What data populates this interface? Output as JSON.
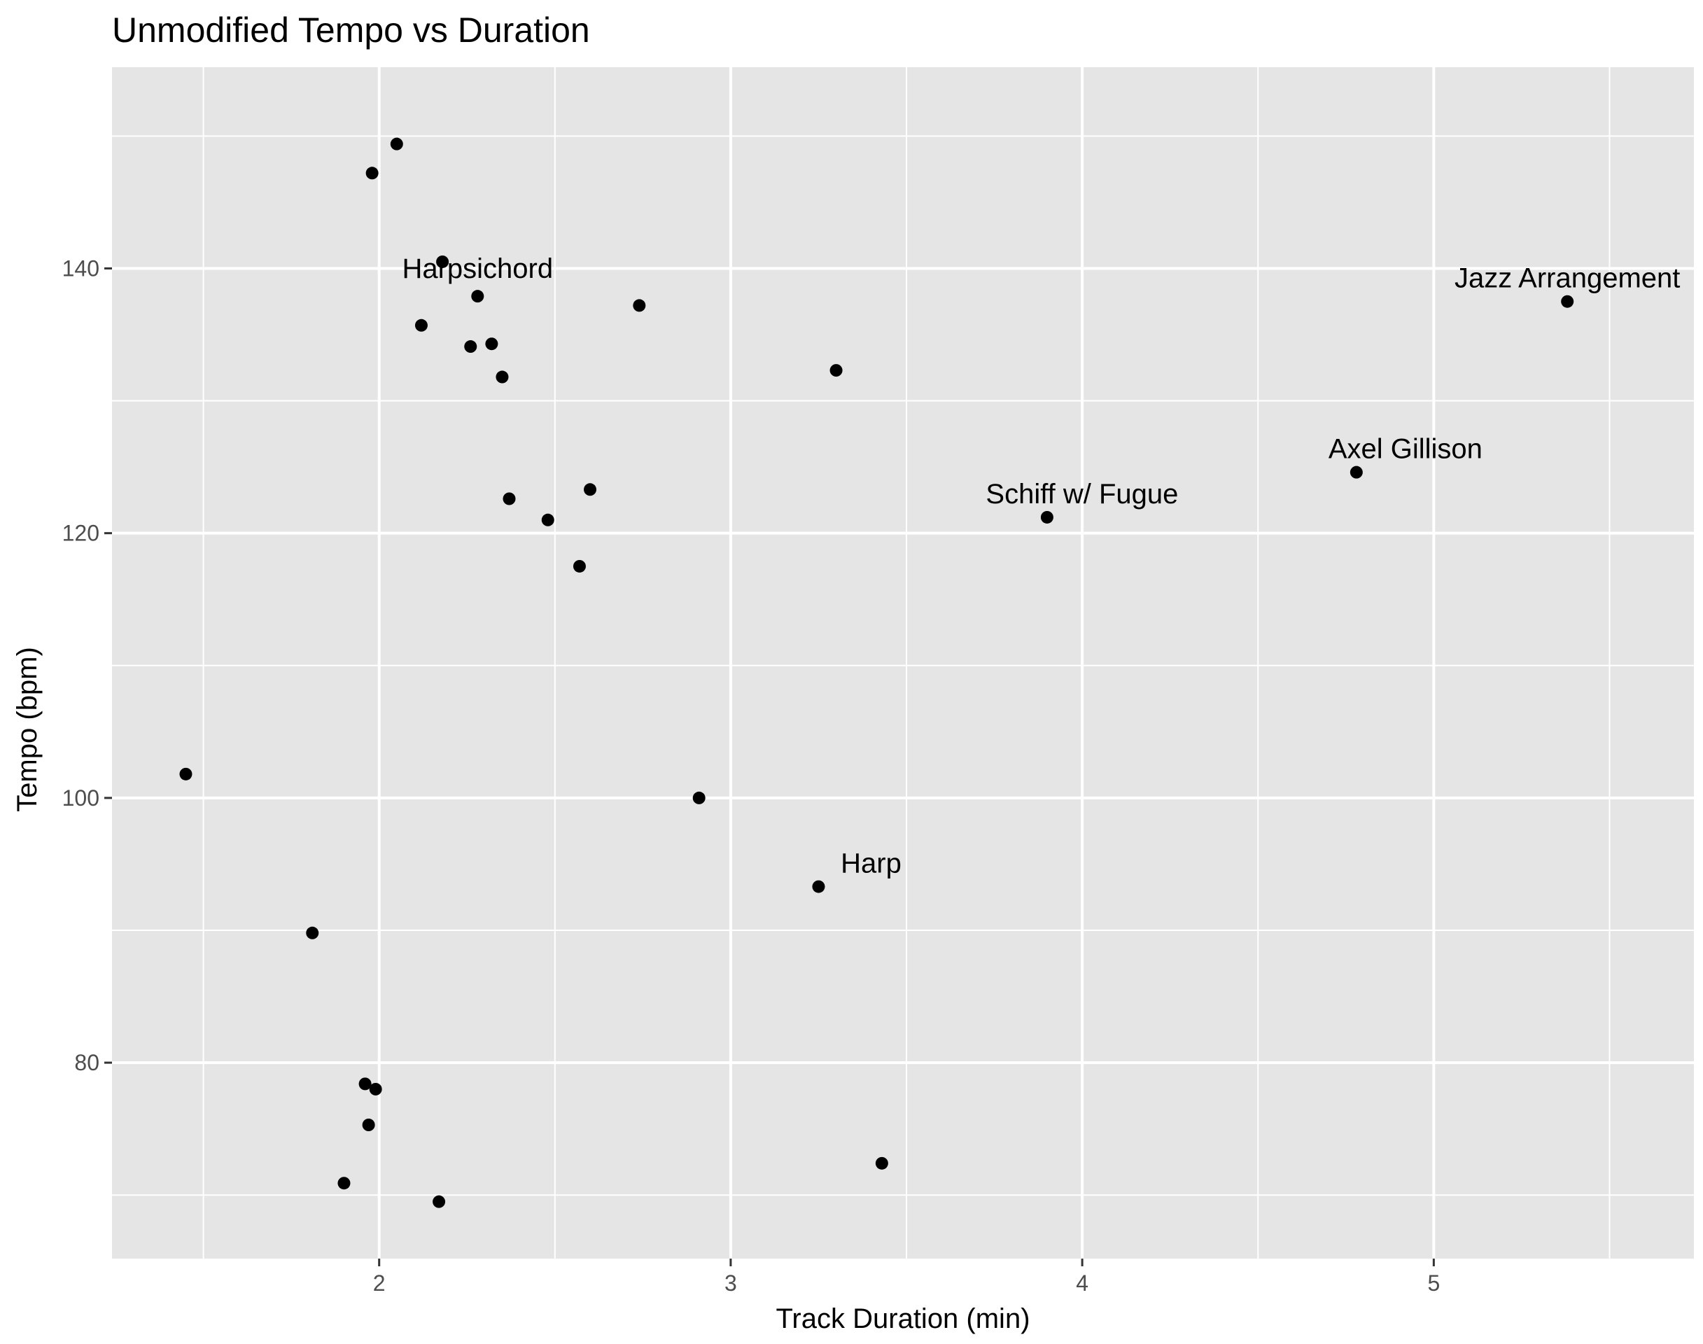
{
  "chart_data": {
    "type": "scatter",
    "title": "Unmodified Tempo vs Duration",
    "xlabel": "Track Duration (min)",
    "ylabel": "Tempo (bpm)",
    "xlim": [
      1.24,
      5.74
    ],
    "ylim": [
      65.2,
      155.2
    ],
    "x_ticks": [
      2,
      3,
      4,
      5
    ],
    "y_ticks": [
      80,
      100,
      120,
      140
    ],
    "x_minor": [
      1.5,
      2.5,
      3.5,
      4.5,
      5.5
    ],
    "y_minor": [
      70,
      90,
      110,
      130,
      150
    ],
    "grid": true,
    "background": "#e5e5e5",
    "gridline_color": "#ffffff",
    "point_color": "#000000",
    "points": [
      {
        "x": 1.45,
        "y": 101.8,
        "label": ""
      },
      {
        "x": 1.81,
        "y": 89.8,
        "label": ""
      },
      {
        "x": 1.9,
        "y": 70.9,
        "label": ""
      },
      {
        "x": 1.96,
        "y": 78.4,
        "label": ""
      },
      {
        "x": 1.97,
        "y": 75.3,
        "label": ""
      },
      {
        "x": 1.98,
        "y": 147.2,
        "label": ""
      },
      {
        "x": 1.99,
        "y": 78.0,
        "label": ""
      },
      {
        "x": 2.05,
        "y": 149.4,
        "label": ""
      },
      {
        "x": 2.12,
        "y": 135.7,
        "label": ""
      },
      {
        "x": 2.17,
        "y": 69.5,
        "label": ""
      },
      {
        "x": 2.18,
        "y": 140.5,
        "label": ""
      },
      {
        "x": 2.26,
        "y": 134.1,
        "label": ""
      },
      {
        "x": 2.28,
        "y": 137.9,
        "label": "Harpsichord"
      },
      {
        "x": 2.32,
        "y": 134.3,
        "label": ""
      },
      {
        "x": 2.35,
        "y": 131.8,
        "label": ""
      },
      {
        "x": 2.37,
        "y": 122.6,
        "label": ""
      },
      {
        "x": 2.48,
        "y": 121.0,
        "label": ""
      },
      {
        "x": 2.57,
        "y": 117.5,
        "label": ""
      },
      {
        "x": 2.6,
        "y": 123.3,
        "label": ""
      },
      {
        "x": 2.74,
        "y": 137.2,
        "label": ""
      },
      {
        "x": 2.91,
        "y": 100.0,
        "label": ""
      },
      {
        "x": 3.25,
        "y": 93.3,
        "label": "Harp"
      },
      {
        "x": 3.3,
        "y": 132.3,
        "label": ""
      },
      {
        "x": 3.43,
        "y": 72.4,
        "label": ""
      },
      {
        "x": 3.9,
        "y": 121.2,
        "label": "Schiff w/ Fugue"
      },
      {
        "x": 4.78,
        "y": 124.6,
        "label": "Axel Gillison"
      },
      {
        "x": 5.38,
        "y": 137.5,
        "label": "Jazz Arrangement"
      }
    ]
  }
}
